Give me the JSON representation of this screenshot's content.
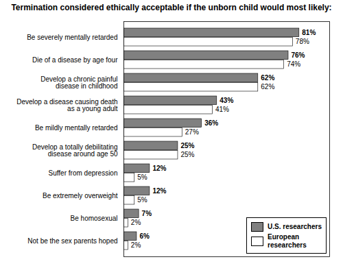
{
  "chart_data": {
    "type": "bar",
    "orientation": "horizontal",
    "title": "Termination considered ethically acceptable if the unborn child would most likely:",
    "categories": [
      "Be severely mentally retarded",
      "Die of a disease by age four",
      "Develop a chronic painful\ndisease in childhood",
      "Develop a disease causing death\nas a young adult",
      "Be mildly mentally retarded",
      "Develop a totally debilitating\ndisease around age 50",
      "Suffer from depression",
      "Be extremely overweight",
      "Be homosexual",
      "Not be the sex parents hoped"
    ],
    "series": [
      {
        "name": "U.S. researchers",
        "color": "#808080",
        "values": [
          81,
          76,
          62,
          43,
          36,
          25,
          12,
          12,
          7,
          6
        ],
        "value_labels": [
          "81%",
          "76%",
          "62%",
          "43%",
          "36%",
          "25%",
          "12%",
          "12%",
          "7%",
          "6%"
        ]
      },
      {
        "name": "European\nresearchers",
        "color": "#ffffff",
        "values": [
          78,
          74,
          62,
          41,
          27,
          25,
          5,
          5,
          2,
          2
        ],
        "value_labels": [
          "78%",
          "74%",
          "62%",
          "41%",
          "27%",
          "25%",
          "5%",
          "5%",
          "2%",
          "2%"
        ]
      }
    ],
    "xlim": [
      0,
      95
    ],
    "xticks": [],
    "data_labels": true,
    "tick_labels": "y",
    "legend": "lower right",
    "grid": false
  }
}
